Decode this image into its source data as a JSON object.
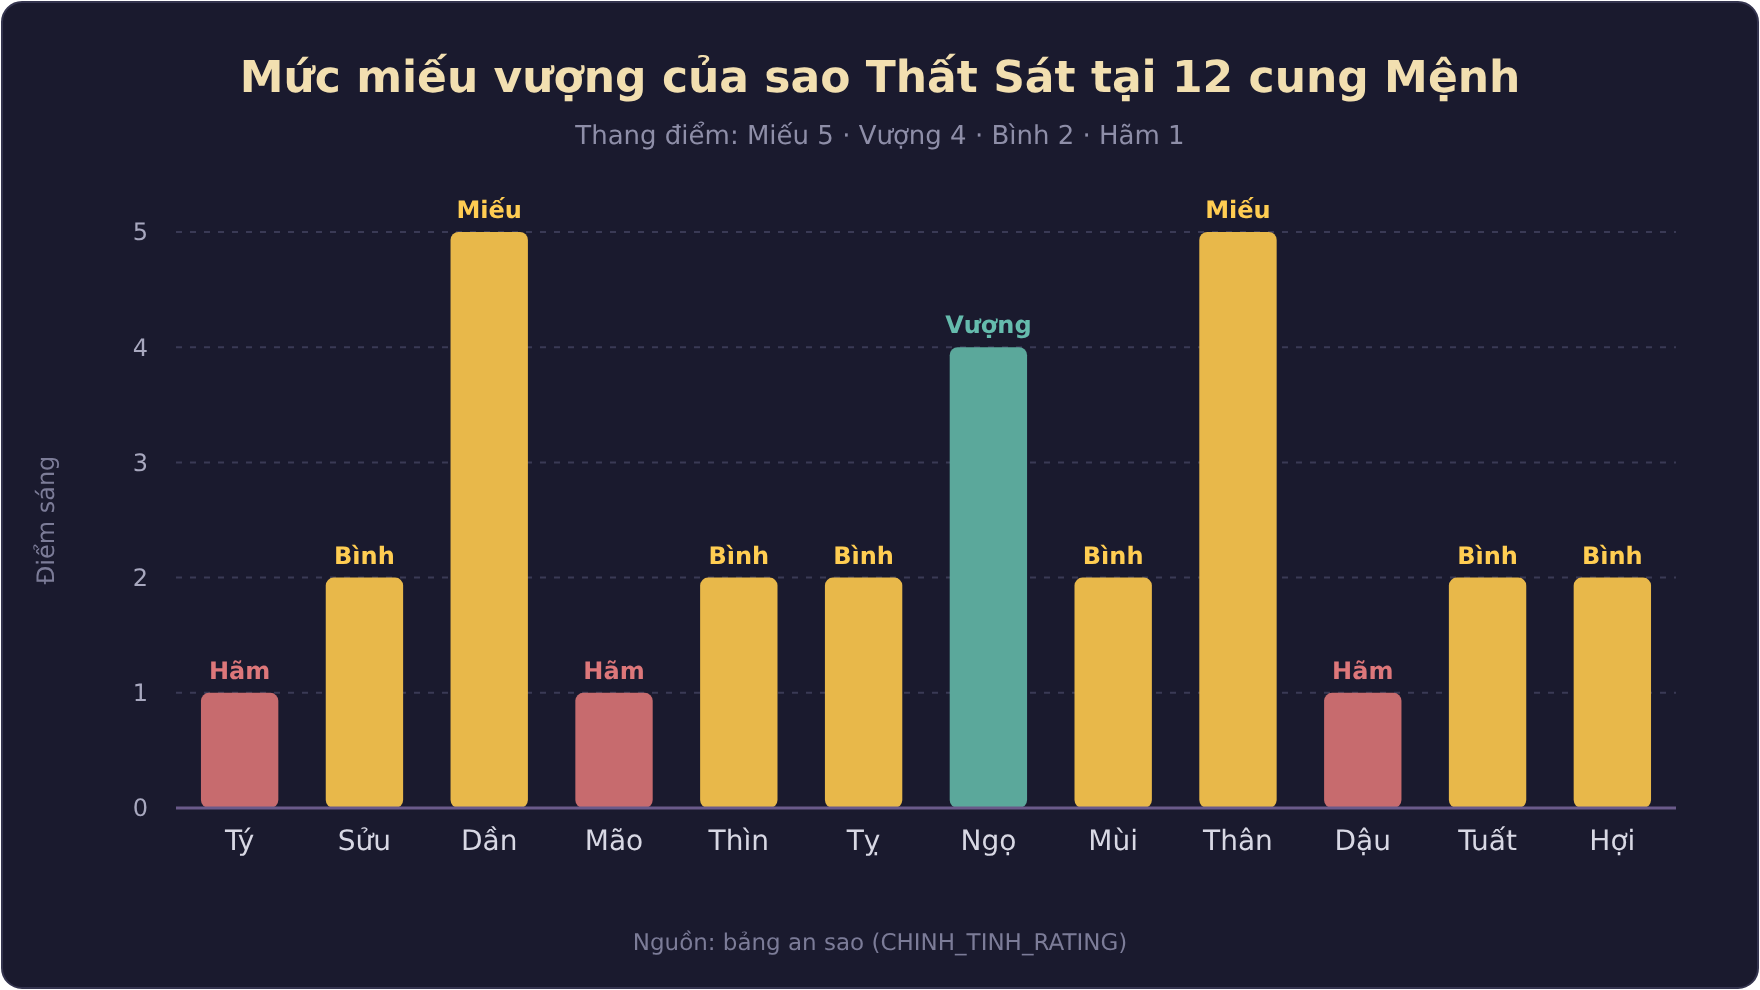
{
  "chart_data": {
    "type": "bar",
    "title": "Mức miếu vượng của sao Thất Sát tại 12 cung Mệnh",
    "subtitle": "Thang điểm: Miếu 5 · Vượng 4 · Bình 2 · Hãm 1",
    "ylabel": "Điểm sáng",
    "categories": [
      "Tý",
      "Sửu",
      "Dần",
      "Mão",
      "Thìn",
      "Tỵ",
      "Ngọ",
      "Mùi",
      "Thân",
      "Dậu",
      "Tuất",
      "Hợi"
    ],
    "values": [
      1,
      2,
      5,
      1,
      2,
      2,
      4,
      2,
      5,
      1,
      2,
      2
    ],
    "colors": [
      "#c76b6e",
      "#e8b84a",
      "#e8b84a",
      "#c76b6e",
      "#e8b84a",
      "#e8b84a",
      "#5ba89b",
      "#e8b84a",
      "#e8b84a",
      "#c76b6e",
      "#e8b84a",
      "#e8b84a"
    ],
    "value_labels": [
      "Hãm",
      "Bình",
      "Miếu",
      "Hãm",
      "Bình",
      "Bình",
      "Vượng",
      "Bình",
      "Miếu",
      "Hãm",
      "Bình",
      "Bình"
    ],
    "ylim": [
      0,
      5
    ],
    "yticks": [
      0,
      1,
      2,
      3,
      4,
      5
    ],
    "grid": "y",
    "annotations": [
      "Nguồn: bảng an sao (CHINH_TINH_RATING)"
    ]
  }
}
